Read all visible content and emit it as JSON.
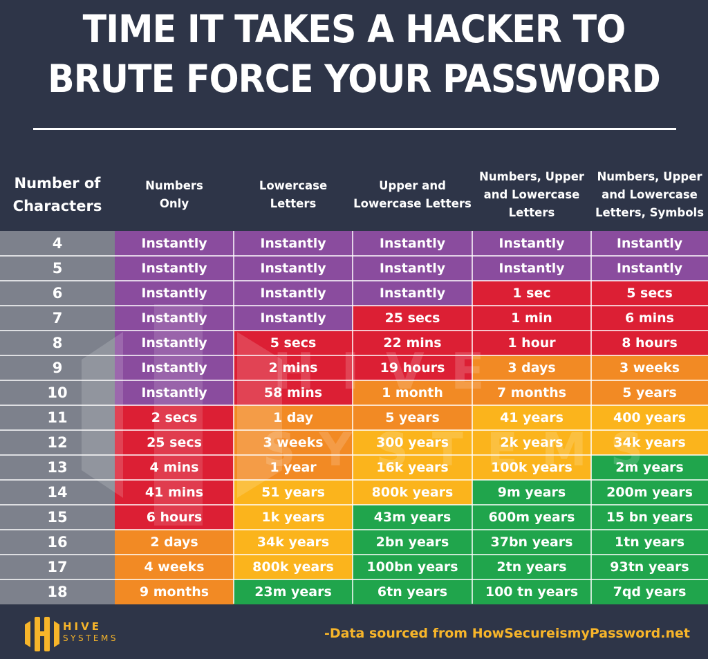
{
  "title": {
    "line1": "TIME IT TAKES A HACKER TO",
    "line2": "BRUTE FORCE YOUR PASSWORD"
  },
  "colors": {
    "background": "#2e3548",
    "row_header": "#7d818c",
    "instantly": "#8a4c9e",
    "seconds_to_hours": "#dc1f34",
    "days_to_years": "#f28a24",
    "centuries": "#fbb41c",
    "millions_plus": "#20a54c",
    "accent": "#f7b52a"
  },
  "columns": [
    "Number of Characters",
    "Numbers Only",
    "Lowercase Letters",
    "Upper and Lowercase Letters",
    "Numbers, Upper and Lowercase Letters",
    "Numbers, Upper and Lowercase Letters, Symbols"
  ],
  "header_lines": [
    [
      "Number of",
      "Characters"
    ],
    [
      "Numbers",
      "Only"
    ],
    [
      "Lowercase",
      "Letters"
    ],
    [
      "Upper and",
      "Lowercase Letters"
    ],
    [
      "Numbers, Upper",
      "and Lowercase",
      "Letters"
    ],
    [
      "Numbers, Upper",
      "and Lowercase",
      "Letters, Symbols"
    ]
  ],
  "rows": [
    {
      "chars": "4",
      "cells": [
        "Instantly",
        "Instantly",
        "Instantly",
        "Instantly",
        "Instantly"
      ],
      "tiers": [
        "p",
        "p",
        "p",
        "p",
        "p"
      ]
    },
    {
      "chars": "5",
      "cells": [
        "Instantly",
        "Instantly",
        "Instantly",
        "Instantly",
        "Instantly"
      ],
      "tiers": [
        "p",
        "p",
        "p",
        "p",
        "p"
      ]
    },
    {
      "chars": "6",
      "cells": [
        "Instantly",
        "Instantly",
        "Instantly",
        "1 sec",
        "5 secs"
      ],
      "tiers": [
        "p",
        "p",
        "p",
        "r",
        "r"
      ]
    },
    {
      "chars": "7",
      "cells": [
        "Instantly",
        "Instantly",
        "25 secs",
        "1 min",
        "6 mins"
      ],
      "tiers": [
        "p",
        "p",
        "r",
        "r",
        "r"
      ]
    },
    {
      "chars": "8",
      "cells": [
        "Instantly",
        "5 secs",
        "22 mins",
        "1 hour",
        "8 hours"
      ],
      "tiers": [
        "p",
        "r",
        "r",
        "r",
        "r"
      ]
    },
    {
      "chars": "9",
      "cells": [
        "Instantly",
        "2 mins",
        "19 hours",
        "3 days",
        "3 weeks"
      ],
      "tiers": [
        "p",
        "r",
        "r",
        "o",
        "o"
      ]
    },
    {
      "chars": "10",
      "cells": [
        "Instantly",
        "58 mins",
        "1 month",
        "7 months",
        "5 years"
      ],
      "tiers": [
        "p",
        "r",
        "o",
        "o",
        "o"
      ]
    },
    {
      "chars": "11",
      "cells": [
        "2 secs",
        "1 day",
        "5 years",
        "41 years",
        "400 years"
      ],
      "tiers": [
        "r",
        "o",
        "o",
        "y",
        "y"
      ]
    },
    {
      "chars": "12",
      "cells": [
        "25 secs",
        "3 weeks",
        "300 years",
        "2k years",
        "34k years"
      ],
      "tiers": [
        "r",
        "o",
        "y",
        "y",
        "y"
      ]
    },
    {
      "chars": "13",
      "cells": [
        "4 mins",
        "1 year",
        "16k years",
        "100k years",
        "2m years"
      ],
      "tiers": [
        "r",
        "o",
        "y",
        "y",
        "g"
      ]
    },
    {
      "chars": "14",
      "cells": [
        "41 mins",
        "51 years",
        "800k years",
        "9m years",
        "200m years"
      ],
      "tiers": [
        "r",
        "y",
        "y",
        "g",
        "g"
      ]
    },
    {
      "chars": "15",
      "cells": [
        "6 hours",
        "1k years",
        "43m years",
        "600m years",
        "15 bn years"
      ],
      "tiers": [
        "r",
        "y",
        "g",
        "g",
        "g"
      ]
    },
    {
      "chars": "16",
      "cells": [
        "2 days",
        "34k years",
        "2bn years",
        "37bn years",
        "1tn years"
      ],
      "tiers": [
        "o",
        "y",
        "g",
        "g",
        "g"
      ]
    },
    {
      "chars": "17",
      "cells": [
        "4 weeks",
        "800k years",
        "100bn years",
        "2tn years",
        "93tn years"
      ],
      "tiers": [
        "o",
        "y",
        "g",
        "g",
        "g"
      ]
    },
    {
      "chars": "18",
      "cells": [
        "9 months",
        "23m years",
        "6tn years",
        "100 tn years",
        "7qd years"
      ],
      "tiers": [
        "o",
        "g",
        "g",
        "g",
        "g"
      ]
    }
  ],
  "watermark": {
    "line1": "HIVE",
    "line2": "SYSTEMS"
  },
  "footer": {
    "logo_line1": "HIVE",
    "logo_line2": "SYSTEMS",
    "source": "-Data sourced from HowSecureismyPassword.net"
  },
  "chart_data": {
    "type": "table",
    "title": "TIME IT TAKES A HACKER TO BRUTE FORCE YOUR PASSWORD",
    "row_label": "Number of Characters",
    "columns": [
      "Numbers Only",
      "Lowercase Letters",
      "Upper and Lowercase Letters",
      "Numbers, Upper and Lowercase Letters",
      "Numbers, Upper and Lowercase Letters, Symbols"
    ],
    "rows": [
      "4",
      "5",
      "6",
      "7",
      "8",
      "9",
      "10",
      "11",
      "12",
      "13",
      "14",
      "15",
      "16",
      "17",
      "18"
    ],
    "values": [
      [
        "Instantly",
        "Instantly",
        "Instantly",
        "Instantly",
        "Instantly"
      ],
      [
        "Instantly",
        "Instantly",
        "Instantly",
        "Instantly",
        "Instantly"
      ],
      [
        "Instantly",
        "Instantly",
        "Instantly",
        "1 sec",
        "5 secs"
      ],
      [
        "Instantly",
        "Instantly",
        "25 secs",
        "1 min",
        "6 mins"
      ],
      [
        "Instantly",
        "5 secs",
        "22 mins",
        "1 hour",
        "8 hours"
      ],
      [
        "Instantly",
        "2 mins",
        "19 hours",
        "3 days",
        "3 weeks"
      ],
      [
        "Instantly",
        "58 mins",
        "1 month",
        "7 months",
        "5 years"
      ],
      [
        "2 secs",
        "1 day",
        "5 years",
        "41 years",
        "400 years"
      ],
      [
        "25 secs",
        "3 weeks",
        "300 years",
        "2k years",
        "34k years"
      ],
      [
        "4 mins",
        "1 year",
        "16k years",
        "100k years",
        "2m years"
      ],
      [
        "41 mins",
        "51 years",
        "800k years",
        "9m years",
        "200m years"
      ],
      [
        "6 hours",
        "1k years",
        "43m years",
        "600m years",
        "15 bn years"
      ],
      [
        "2 days",
        "34k years",
        "2bn years",
        "37bn years",
        "1tn years"
      ],
      [
        "4 weeks",
        "800k years",
        "100bn years",
        "2tn years",
        "93tn years"
      ],
      [
        "9 months",
        "23m years",
        "6tn years",
        "100 tn years",
        "7qd years"
      ]
    ],
    "source": "-Data sourced from HowSecureismyPassword.net"
  }
}
